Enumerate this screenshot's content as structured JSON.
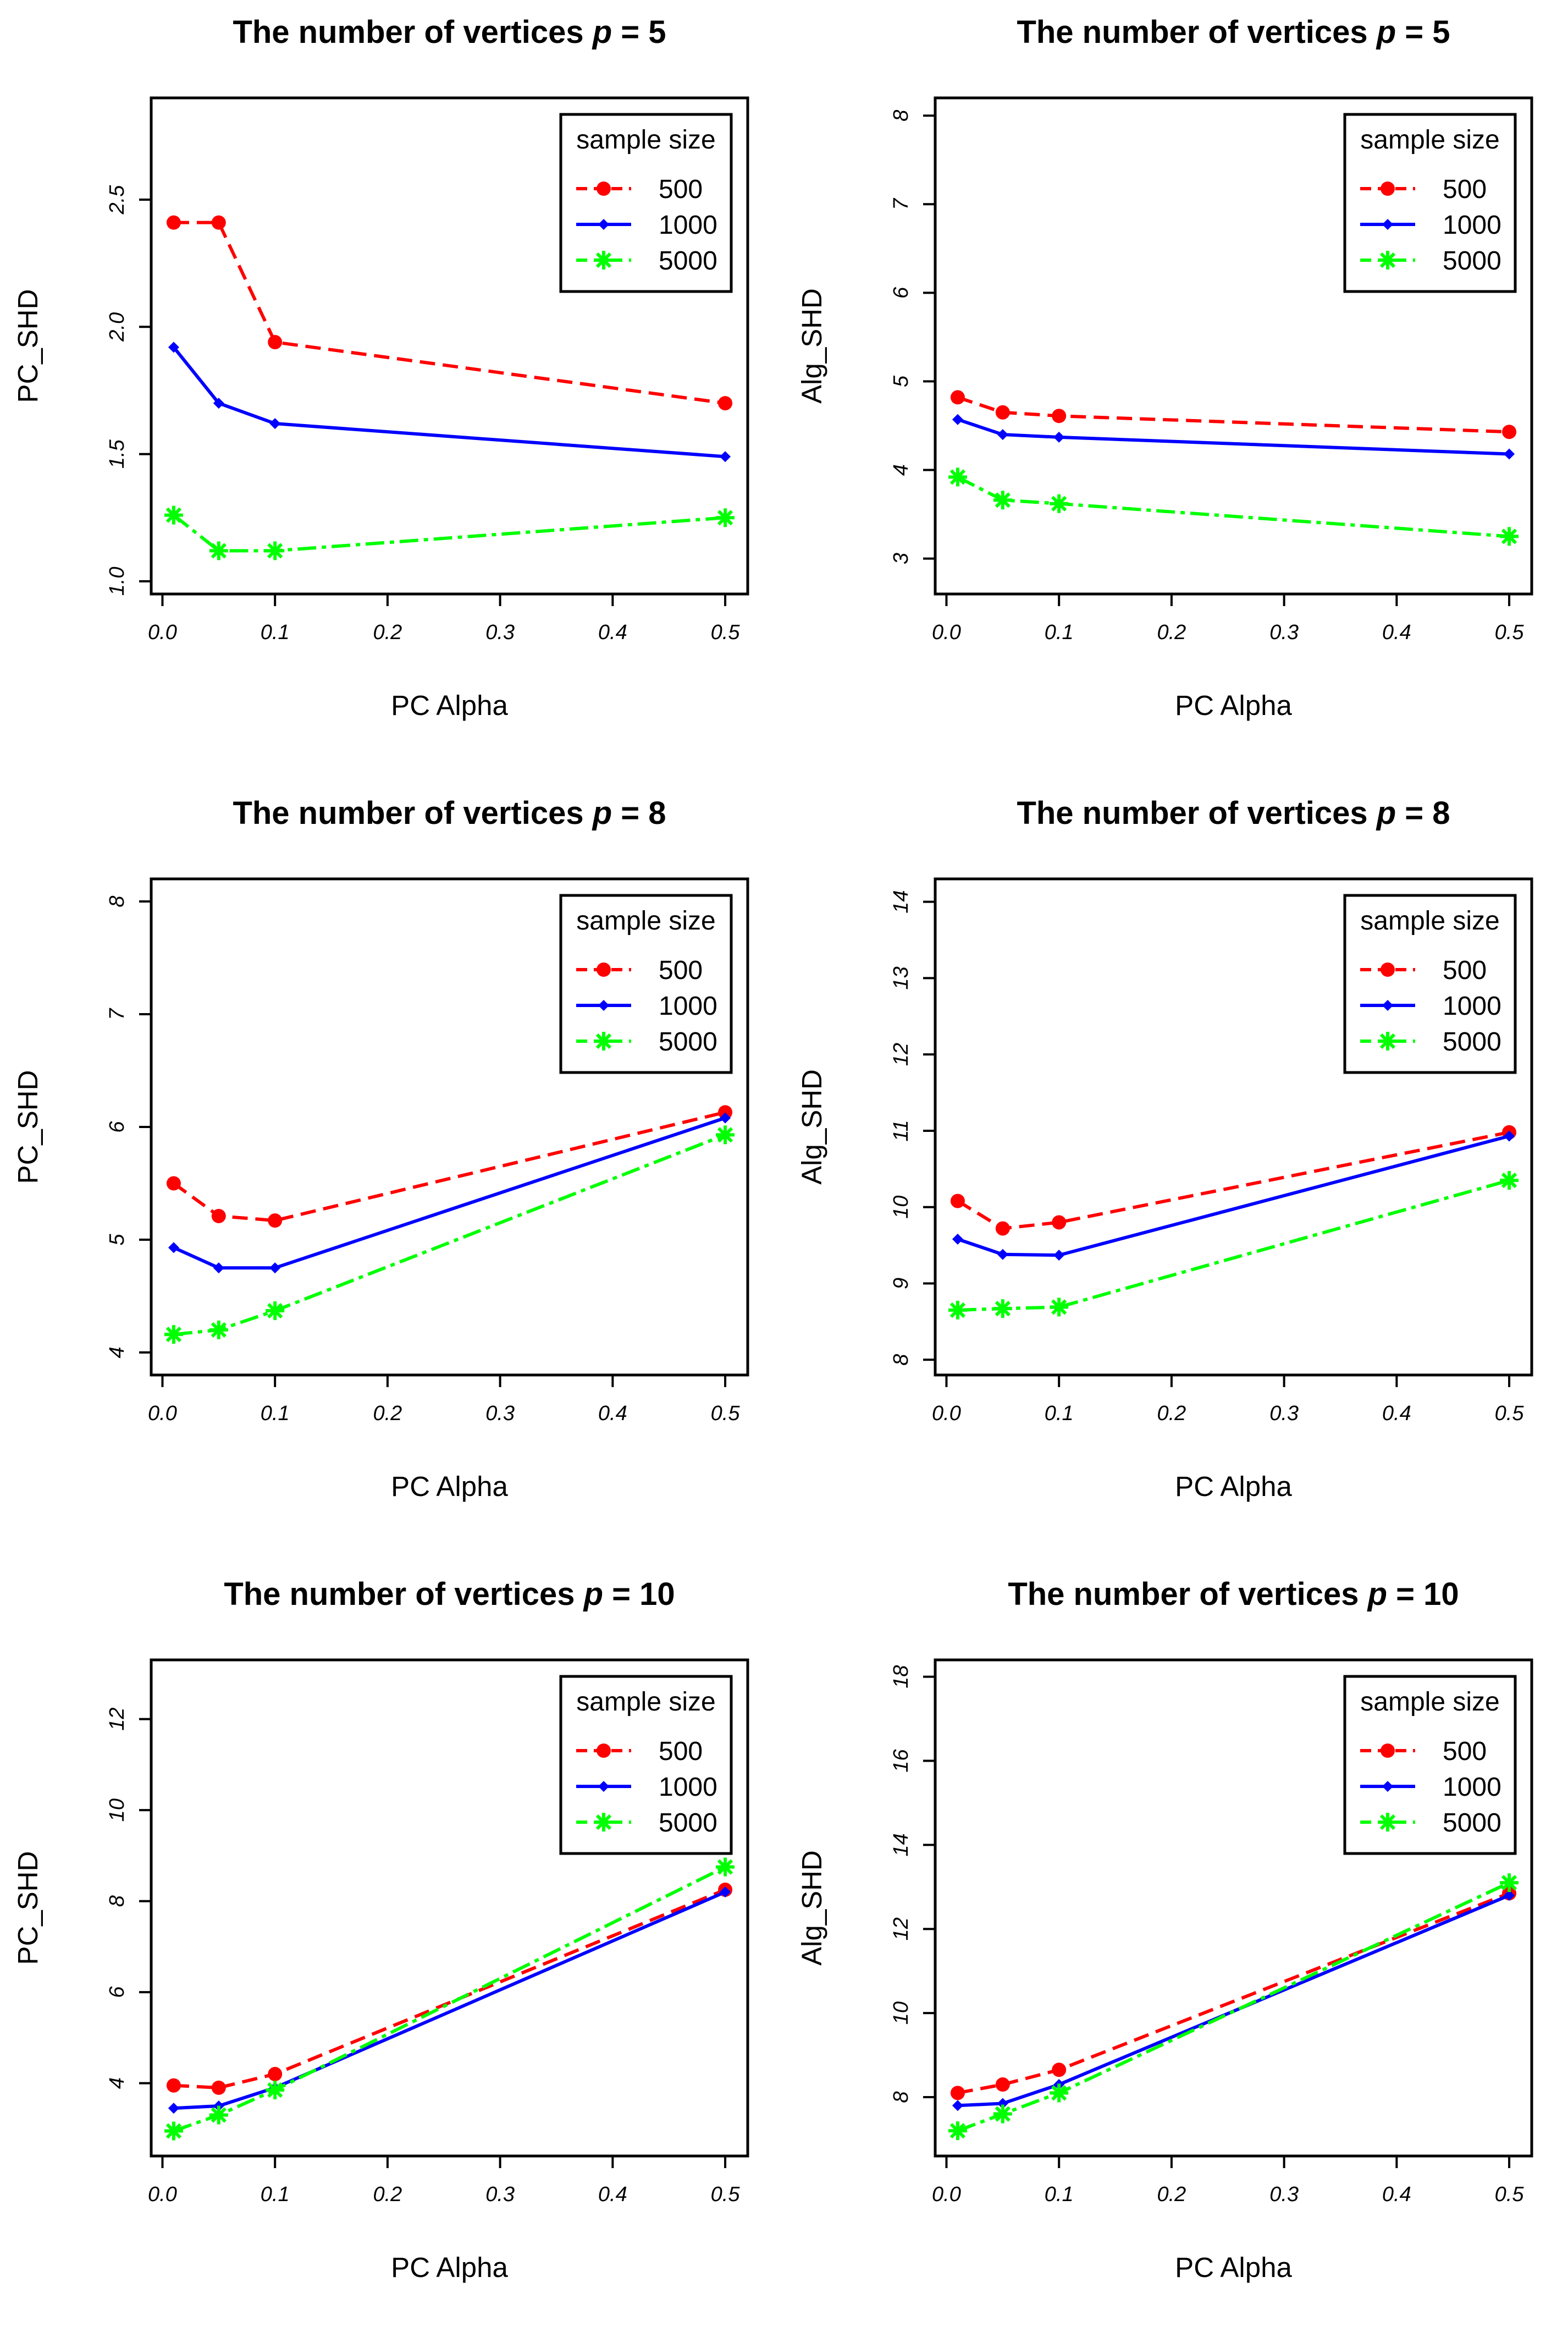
{
  "colors": {
    "500": "#ff0000",
    "1000": "#0000ff",
    "5000": "#00ff00",
    "axis": "#000000"
  },
  "chart_data": [
    {
      "type": "line",
      "title": "The number of vertices",
      "title_symbol": "p",
      "title_value": "= 5",
      "xlabel": "PC Alpha",
      "ylabel": "PC_SHD",
      "x": [
        0.01,
        0.05,
        0.1,
        0.5
      ],
      "xticks": [
        "0.0",
        "0.1",
        "0.2",
        "0.3",
        "0.4",
        "0.5"
      ],
      "yticks": [
        "1.0",
        "1.5",
        "2.0",
        "2.5"
      ],
      "xlim": [
        -0.01,
        0.52
      ],
      "ylim": [
        0.95,
        2.9
      ],
      "legend_title": "sample size",
      "legend_position": "top-right",
      "series": [
        {
          "name": "500",
          "values": [
            2.41,
            2.41,
            1.94,
            1.7
          ]
        },
        {
          "name": "1000",
          "values": [
            1.92,
            1.7,
            1.62,
            1.49
          ]
        },
        {
          "name": "5000",
          "values": [
            1.26,
            1.12,
            1.12,
            1.25
          ]
        }
      ]
    },
    {
      "type": "line",
      "title": "The number of vertices",
      "title_symbol": "p",
      "title_value": "= 5",
      "xlabel": "PC Alpha",
      "ylabel": "Alg_SHD",
      "x": [
        0.01,
        0.05,
        0.1,
        0.5
      ],
      "xticks": [
        "0.0",
        "0.1",
        "0.2",
        "0.3",
        "0.4",
        "0.5"
      ],
      "yticks": [
        "3",
        "4",
        "5",
        "6",
        "7",
        "8"
      ],
      "xlim": [
        -0.01,
        0.52
      ],
      "ylim": [
        2.6,
        8.2
      ],
      "legend_title": "sample size",
      "legend_position": "top-right",
      "series": [
        {
          "name": "500",
          "values": [
            4.82,
            4.65,
            4.61,
            4.43
          ]
        },
        {
          "name": "1000",
          "values": [
            4.57,
            4.4,
            4.37,
            4.18
          ]
        },
        {
          "name": "5000",
          "values": [
            3.92,
            3.66,
            3.62,
            3.25
          ]
        }
      ]
    },
    {
      "type": "line",
      "title": "The number of vertices",
      "title_symbol": "p",
      "title_value": "= 8",
      "xlabel": "PC Alpha",
      "ylabel": "PC_SHD",
      "x": [
        0.01,
        0.05,
        0.1,
        0.5
      ],
      "xticks": [
        "0.0",
        "0.1",
        "0.2",
        "0.3",
        "0.4",
        "0.5"
      ],
      "yticks": [
        "4",
        "5",
        "6",
        "7",
        "8"
      ],
      "xlim": [
        -0.01,
        0.52
      ],
      "ylim": [
        3.8,
        8.2
      ],
      "legend_title": "sample size",
      "legend_position": "top-right",
      "series": [
        {
          "name": "500",
          "values": [
            5.5,
            5.21,
            5.17,
            6.13
          ]
        },
        {
          "name": "1000",
          "values": [
            4.93,
            4.75,
            4.75,
            6.08
          ]
        },
        {
          "name": "5000",
          "values": [
            4.16,
            4.2,
            4.37,
            5.93
          ]
        }
      ]
    },
    {
      "type": "line",
      "title": "The number of vertices",
      "title_symbol": "p",
      "title_value": "= 8",
      "xlabel": "PC Alpha",
      "ylabel": "Alg_SHD",
      "x": [
        0.01,
        0.05,
        0.1,
        0.5
      ],
      "xticks": [
        "0.0",
        "0.1",
        "0.2",
        "0.3",
        "0.4",
        "0.5"
      ],
      "yticks": [
        "8",
        "9",
        "10",
        "11",
        "12",
        "13",
        "14"
      ],
      "xlim": [
        -0.01,
        0.52
      ],
      "ylim": [
        7.8,
        14.3
      ],
      "legend_title": "sample size",
      "legend_position": "top-right",
      "series": [
        {
          "name": "500",
          "values": [
            10.08,
            9.72,
            9.8,
            10.98
          ]
        },
        {
          "name": "1000",
          "values": [
            9.58,
            9.38,
            9.37,
            10.93
          ]
        },
        {
          "name": "5000",
          "values": [
            8.65,
            8.67,
            8.69,
            10.35
          ]
        }
      ]
    },
    {
      "type": "line",
      "title": "The number of vertices",
      "title_symbol": "p",
      "title_value": "= 10",
      "xlabel": "PC Alpha",
      "ylabel": "PC_SHD",
      "x": [
        0.01,
        0.05,
        0.1,
        0.5
      ],
      "xticks": [
        "0.0",
        "0.1",
        "0.2",
        "0.3",
        "0.4",
        "0.5"
      ],
      "yticks": [
        "4",
        "6",
        "8",
        "10",
        "12"
      ],
      "xlim": [
        -0.01,
        0.52
      ],
      "ylim": [
        2.4,
        13.3
      ],
      "legend_title": "sample size",
      "legend_position": "top-right",
      "series": [
        {
          "name": "500",
          "values": [
            3.95,
            3.9,
            4.2,
            8.25
          ]
        },
        {
          "name": "1000",
          "values": [
            3.45,
            3.5,
            3.9,
            8.2
          ]
        },
        {
          "name": "5000",
          "values": [
            2.95,
            3.3,
            3.85,
            8.75
          ]
        }
      ]
    },
    {
      "type": "line",
      "title": "The number of vertices",
      "title_symbol": "p",
      "title_value": "= 10",
      "xlabel": "PC Alpha",
      "ylabel": "Alg_SHD",
      "x": [
        0.01,
        0.05,
        0.1,
        0.5
      ],
      "xticks": [
        "0.0",
        "0.1",
        "0.2",
        "0.3",
        "0.4",
        "0.5"
      ],
      "yticks": [
        "8",
        "10",
        "12",
        "14",
        "16",
        "18"
      ],
      "xlim": [
        -0.01,
        0.52
      ],
      "ylim": [
        6.6,
        18.4
      ],
      "legend_title": "sample size",
      "legend_position": "top-right",
      "series": [
        {
          "name": "500",
          "values": [
            8.1,
            8.3,
            8.65,
            12.85
          ]
        },
        {
          "name": "1000",
          "values": [
            7.8,
            7.85,
            8.3,
            12.8
          ]
        },
        {
          "name": "5000",
          "values": [
            7.2,
            7.6,
            8.1,
            13.1
          ]
        }
      ]
    }
  ]
}
